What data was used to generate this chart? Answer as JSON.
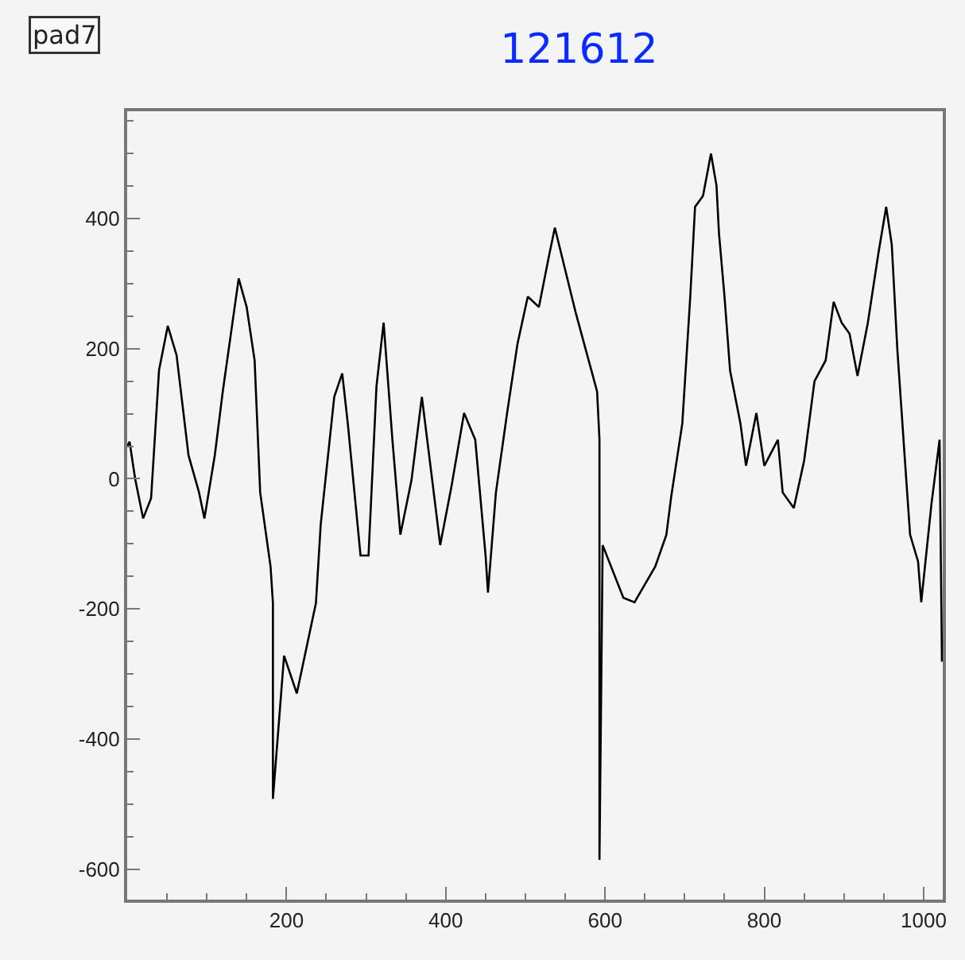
{
  "chart_data": {
    "type": "line",
    "title": "121612",
    "annotations": [
      "pad7"
    ],
    "series": [
      {
        "color": "#000000",
        "x": [
          0,
          3,
          10,
          20,
          30,
          40,
          51,
          62,
          77,
          90,
          97,
          110,
          120,
          140,
          150,
          160,
          167,
          180,
          183,
          183,
          197,
          213,
          237,
          243,
          260,
          270,
          277,
          293,
          303,
          313,
          322,
          333,
          343,
          357,
          370,
          383,
          393,
          407,
          423,
          437,
          450,
          453,
          463,
          477,
          490,
          503,
          517,
          530,
          537,
          550,
          563,
          583,
          590,
          593,
          593,
          597,
          623,
          637,
          663,
          677,
          683,
          697,
          707,
          713,
          723,
          733,
          740,
          743,
          750,
          757,
          770,
          777,
          790,
          800,
          817,
          823,
          837,
          850,
          863,
          877,
          887,
          897,
          907,
          917,
          930,
          943,
          953,
          960,
          967,
          977,
          983,
          993,
          997,
          1010,
          1020,
          1023
        ],
        "values": [
          50,
          57,
          0,
          -61,
          -30,
          167,
          235,
          190,
          36,
          -20,
          -61,
          36,
          134,
          308,
          264,
          182,
          -21,
          -135,
          -191,
          -492,
          -272,
          -330,
          -191,
          -70,
          126,
          162,
          85,
          -118,
          -118,
          142,
          240,
          60,
          -86,
          -2,
          126,
          -2,
          -102,
          -13,
          101,
          60,
          -118,
          -175,
          -21,
          101,
          207,
          280,
          264,
          345,
          386,
          321,
          256,
          166,
          134,
          60,
          -586,
          -102,
          -183,
          -190,
          -135,
          -86,
          -28,
          85,
          280,
          418,
          435,
          500,
          450,
          378,
          280,
          166,
          85,
          20,
          101,
          20,
          60,
          -21,
          -45,
          28,
          150,
          182,
          272,
          240,
          223,
          158,
          240,
          345,
          418,
          360,
          199,
          20,
          -86,
          -127,
          -190,
          -37,
          60,
          -281
        ]
      }
    ],
    "xlim": [
      0,
      1024
    ],
    "ylim": [
      -647,
      565
    ],
    "xticks": [
      200,
      400,
      600,
      800,
      1000
    ],
    "yticks": [
      -600,
      -400,
      -200,
      0,
      200,
      400
    ],
    "grid": false,
    "marker": "none",
    "line_style": "solid"
  }
}
